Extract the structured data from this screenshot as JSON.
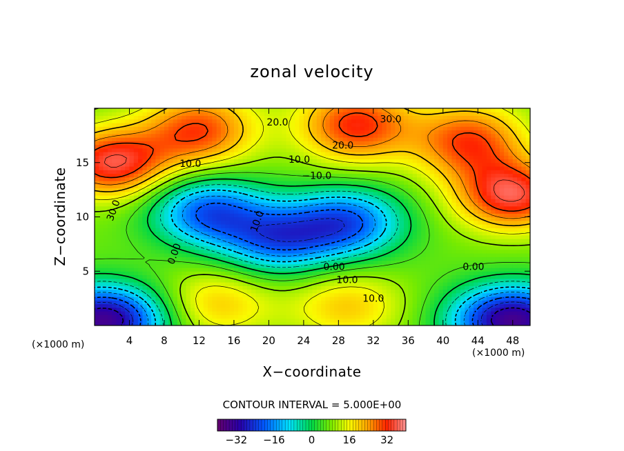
{
  "chart_data": {
    "type": "heatmap",
    "title": "zonal velocity",
    "xlabel": "X−coordinate",
    "ylabel": "Z−coordinate",
    "x_unit": "(×1000 m)",
    "xlim": [
      0,
      50
    ],
    "ylim": [
      0,
      20
    ],
    "x_ticks": [
      "4",
      "8",
      "12",
      "16",
      "20",
      "24",
      "28",
      "32",
      "36",
      "40",
      "44",
      "48"
    ],
    "y_ticks": [
      "5",
      "10",
      "15"
    ],
    "contour_interval_text": "CONTOUR INTERVAL = 5.000E+00",
    "contour_labels": [
      "20.0",
      "30.0",
      "10.0",
      "10.0",
      "10.0",
      "20.0",
      "−10.0",
      "30.0",
      "10.0",
      "0.00",
      "0.00",
      "0.00",
      "10.0"
    ],
    "colorbar": {
      "range": [
        -40,
        40
      ],
      "ticks": [
        "−32",
        "−16",
        "0",
        "16",
        "32"
      ]
    },
    "features": [
      {
        "kind": "max",
        "x": 2,
        "y": 15,
        "value": 35
      },
      {
        "kind": "max",
        "x": 48,
        "y": 12,
        "value": 35
      },
      {
        "kind": "max",
        "x": 12,
        "y": 18,
        "value": 30
      },
      {
        "kind": "max",
        "x": 30,
        "y": 18.5,
        "value": 32
      },
      {
        "kind": "max",
        "x": 43,
        "y": 17,
        "value": 30
      },
      {
        "kind": "max",
        "x": 14,
        "y": 2,
        "value": 20
      },
      {
        "kind": "max",
        "x": 29,
        "y": 1.8,
        "value": 20
      },
      {
        "kind": "min",
        "x": 13,
        "y": 10.5,
        "value": -20
      },
      {
        "kind": "min",
        "x": 29,
        "y": 9.5,
        "value": -20
      },
      {
        "kind": "min",
        "x": 21,
        "y": 8,
        "value": -18
      },
      {
        "kind": "min",
        "x": 1,
        "y": 0.5,
        "value": -35
      },
      {
        "kind": "min",
        "x": 48,
        "y": 0.5,
        "value": -35
      }
    ]
  }
}
